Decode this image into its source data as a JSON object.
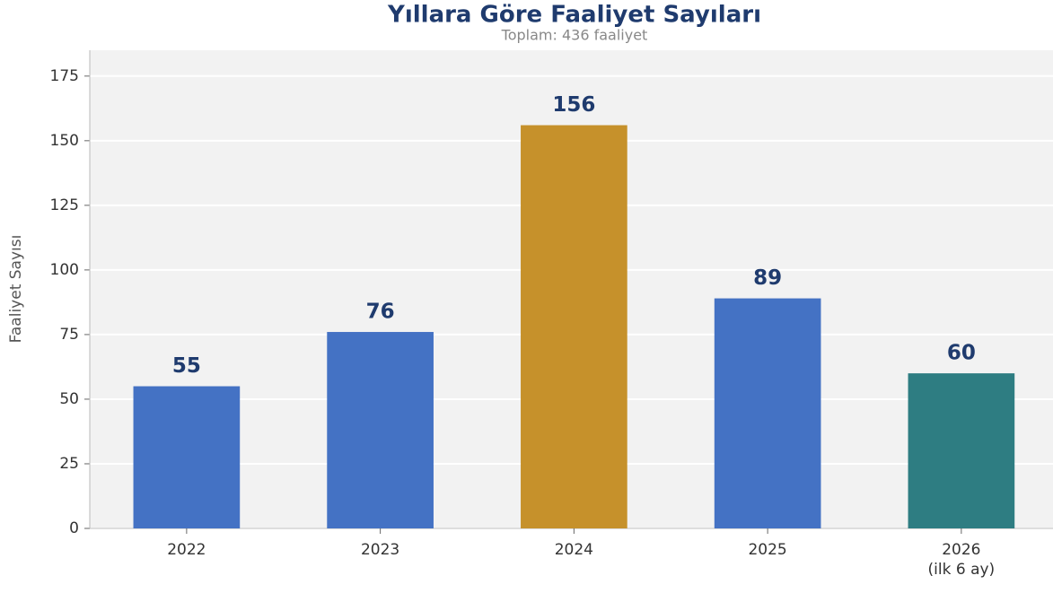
{
  "chart_data": {
    "type": "bar",
    "title": "Yıllara Göre Faaliyet Sayıları",
    "subtitle": "Toplam: 436 faaliyet",
    "y_label": "Faaliyet Sayısı",
    "categories": [
      "2022",
      "2023",
      "2024",
      "2025",
      "2026\n(ilk 6 ay)"
    ],
    "values": [
      55,
      76,
      156,
      89,
      60
    ],
    "colors": [
      "#4472c4",
      "#4472c4",
      "#c6912b",
      "#4472c4",
      "#2e7d82"
    ],
    "ylim": [
      0,
      185
    ],
    "yticks": [
      0,
      25,
      50,
      75,
      100,
      125,
      150,
      175
    ],
    "grid": true
  }
}
